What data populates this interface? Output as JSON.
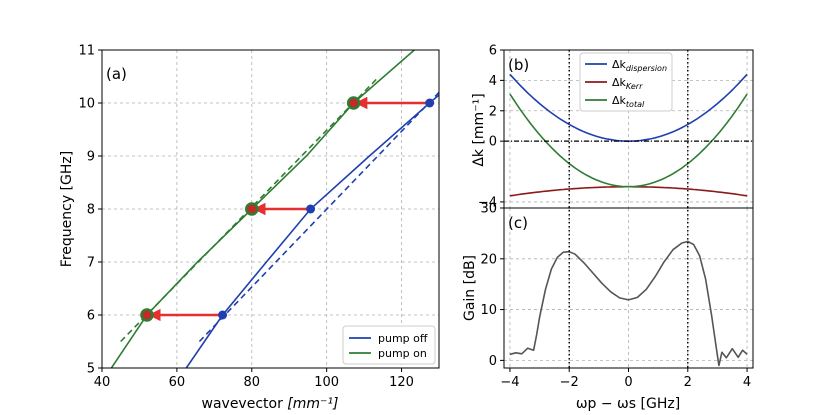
{
  "chart_data": [
    {
      "type": "line",
      "panel_label": "(a)",
      "xlabel": "wavevector",
      "xlabel_unit": "[mm⁻¹]",
      "ylabel": "Frequency [GHz]",
      "xlim": [
        40,
        130
      ],
      "ylim": [
        5,
        11
      ],
      "x_ticks": [
        "40",
        "60",
        "80",
        "100",
        "120"
      ],
      "y_ticks": [
        "5",
        "6",
        "7",
        "8",
        "9",
        "10",
        "11"
      ],
      "grid": true,
      "legend_position": "bottom-right",
      "colors": {
        "pump_off": "#1f3fb0",
        "pump_on": "#2e7d32",
        "arrow": "#e63030",
        "marker_on_face": "#c62828"
      },
      "series": [
        {
          "name": "pump off",
          "style": "solid",
          "color": "#1f3fb0",
          "x": [
            62.5,
            72.2,
            83.9,
            95.7,
            111.4,
            127.5,
            130
          ],
          "y": [
            5.0,
            6.0,
            7.0,
            8.0,
            9.0,
            10.0,
            10.15
          ]
        },
        {
          "name": "pump off (linear)",
          "style": "dashed",
          "color": "#1f3fb0",
          "in_legend": false,
          "x": [
            66,
            130
          ],
          "y": [
            5.5,
            10.2
          ]
        },
        {
          "name": "pump on",
          "style": "solid",
          "color": "#2e7d32",
          "x": [
            42.5,
            52.0,
            65.5,
            80.0,
            94.6,
            107.2,
            123.4
          ],
          "y": [
            5.0,
            6.0,
            7.0,
            8.0,
            9.0,
            10.0,
            11.0
          ]
        },
        {
          "name": "pump on (linear)",
          "style": "dashed",
          "color": "#2e7d32",
          "in_legend": false,
          "x": [
            45,
            114
          ],
          "y": [
            5.5,
            10.5
          ]
        }
      ],
      "arrows": [
        {
          "from": [
            127.5,
            10.0
          ],
          "to": [
            107.2,
            10.0
          ]
        },
        {
          "from": [
            95.7,
            8.0
          ],
          "to": [
            80.0,
            8.0
          ]
        },
        {
          "from": [
            72.2,
            6.0
          ],
          "to": [
            52.0,
            6.0
          ]
        }
      ],
      "legend": [
        "pump off",
        "pump on"
      ]
    },
    {
      "type": "line",
      "panel_label": "(b)",
      "ylabel": "Δk [mm⁻¹]",
      "xlim": [
        -4.2,
        4.2
      ],
      "ylim": [
        -4.4,
        6
      ],
      "y_ticks": [
        "−4",
        "0",
        "2",
        "4",
        "6"
      ],
      "grid": true,
      "legend_position": "top-right",
      "series": [
        {
          "name": "Δk",
          "subscript": "dispersion",
          "color": "#1f3fb0",
          "x": [
            -4,
            -2,
            0,
            2,
            4
          ],
          "y": [
            4.4,
            1.1,
            0.0,
            1.1,
            4.4
          ]
        },
        {
          "name": "Δk",
          "subscript": "Kerr",
          "color": "#8b1a1a",
          "x": [
            -4,
            -2,
            0,
            2,
            4
          ],
          "y": [
            -3.6,
            -3.1,
            -3.0,
            -3.1,
            -3.6
          ]
        },
        {
          "name": "Δk",
          "subscript": "total",
          "color": "#2e7d32",
          "x": [
            -4,
            -2,
            0,
            2,
            4
          ],
          "y": [
            3.1,
            -0.1,
            -3.0,
            -0.1,
            3.1
          ]
        }
      ],
      "zero_line": true,
      "vlines": [
        -2,
        2
      ]
    },
    {
      "type": "line",
      "panel_label": "(c)",
      "xlabel": "ωp − ωs [GHz]",
      "ylabel": "Gain [dB]",
      "xlim": [
        -4.2,
        4.2
      ],
      "ylim": [
        -1.5,
        30
      ],
      "x_ticks": [
        "−4",
        "−2",
        "0",
        "2",
        "4"
      ],
      "y_ticks": [
        "0",
        "10",
        "20",
        "30"
      ],
      "grid": true,
      "series": [
        {
          "name": "Gain",
          "color": "#555555",
          "x": [
            -4,
            -3.8,
            -3.6,
            -3.4,
            -3.2,
            -3.1,
            -3.0,
            -2.8,
            -2.6,
            -2.4,
            -2.2,
            -2.0,
            -1.8,
            -1.5,
            -1.2,
            -0.9,
            -0.6,
            -0.3,
            0.0,
            0.3,
            0.6,
            0.9,
            1.2,
            1.5,
            1.8,
            2.0,
            2.2,
            2.4,
            2.6,
            2.8,
            2.95,
            3.05,
            3.15,
            3.3,
            3.5,
            3.7,
            3.85,
            4.0
          ],
          "y": [
            1.2,
            1.5,
            1.3,
            2.4,
            2.0,
            5.0,
            8.5,
            14.0,
            18.0,
            20.3,
            21.3,
            21.4,
            20.9,
            19.2,
            17.2,
            15.2,
            13.5,
            12.3,
            11.9,
            12.4,
            14.0,
            16.5,
            19.4,
            21.8,
            23.1,
            23.4,
            22.8,
            20.6,
            16.0,
            9.0,
            3.0,
            -1.0,
            1.6,
            0.5,
            2.3,
            0.6,
            2.0,
            1.2
          ]
        }
      ],
      "vlines": [
        -2,
        2
      ]
    }
  ]
}
